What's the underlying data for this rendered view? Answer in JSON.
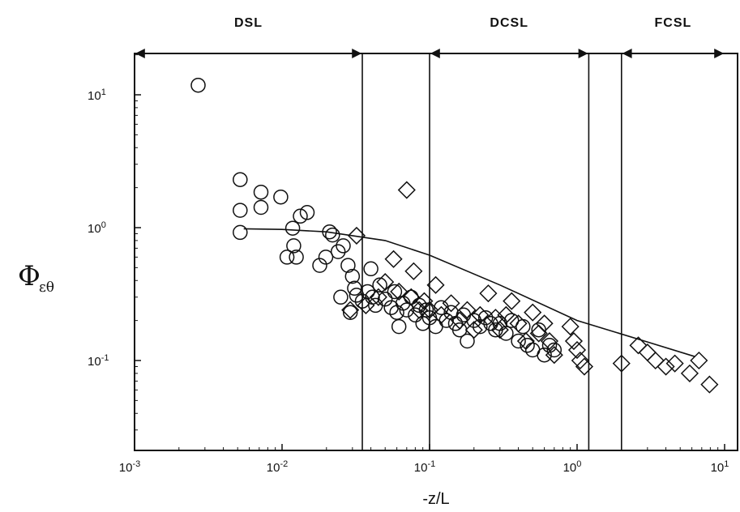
{
  "chart_data": {
    "type": "scatter",
    "title": "",
    "xlabel": "-z/L",
    "ylabel": {
      "main": "Φ",
      "sub": "εθ"
    },
    "x_scale": "log",
    "y_scale": "log",
    "xlim": [
      0.001,
      10
    ],
    "ylim": [
      0.025,
      20
    ],
    "grid": false,
    "x_ticks": [
      {
        "value": 0.001,
        "base": "10",
        "exp": "-3"
      },
      {
        "value": 0.01,
        "base": "10",
        "exp": "-2"
      },
      {
        "value": 0.1,
        "base": "10",
        "exp": "-1"
      },
      {
        "value": 1,
        "base": "10",
        "exp": "0"
      },
      {
        "value": 10,
        "base": "10",
        "exp": "1"
      }
    ],
    "y_ticks": [
      {
        "value": 0.1,
        "base": "10",
        "exp": "-1"
      },
      {
        "value": 1,
        "base": "10",
        "exp": "0"
      },
      {
        "value": 10,
        "base": "10",
        "exp": "1"
      }
    ],
    "regions": [
      {
        "label": "DSL",
        "from": 0.001,
        "to": 0.035
      },
      {
        "label": "DCSL",
        "from": 0.1,
        "to": 1.2
      },
      {
        "label": "FCSL",
        "from": 2.0,
        "to": 10
      }
    ],
    "vertical_lines": [
      0.035,
      0.1,
      1.2,
      2.0
    ],
    "series": [
      {
        "marker": "circle",
        "points": [
          [
            0.0027,
            11.8
          ],
          [
            0.0052,
            2.3
          ],
          [
            0.0052,
            1.35
          ],
          [
            0.0052,
            0.92
          ],
          [
            0.0072,
            1.85
          ],
          [
            0.0072,
            1.42
          ],
          [
            0.0098,
            1.7
          ],
          [
            0.0108,
            0.6
          ],
          [
            0.0118,
            0.99
          ],
          [
            0.012,
            0.73
          ],
          [
            0.0125,
            0.6
          ],
          [
            0.0133,
            1.22
          ],
          [
            0.0148,
            1.3
          ],
          [
            0.018,
            0.52
          ],
          [
            0.0198,
            0.6
          ],
          [
            0.021,
            0.93
          ],
          [
            0.022,
            0.88
          ],
          [
            0.024,
            0.66
          ],
          [
            0.025,
            0.3
          ],
          [
            0.026,
            0.73
          ],
          [
            0.028,
            0.52
          ],
          [
            0.029,
            0.23
          ],
          [
            0.03,
            0.43
          ],
          [
            0.031,
            0.35
          ],
          [
            0.032,
            0.31
          ],
          [
            0.035,
            0.28
          ],
          [
            0.038,
            0.33
          ],
          [
            0.04,
            0.49
          ],
          [
            0.041,
            0.3
          ],
          [
            0.043,
            0.26
          ],
          [
            0.046,
            0.37
          ],
          [
            0.05,
            0.29
          ],
          [
            0.055,
            0.25
          ],
          [
            0.058,
            0.33
          ],
          [
            0.06,
            0.23
          ],
          [
            0.062,
            0.18
          ],
          [
            0.066,
            0.27
          ],
          [
            0.07,
            0.24
          ],
          [
            0.075,
            0.3
          ],
          [
            0.08,
            0.22
          ],
          [
            0.085,
            0.26
          ],
          [
            0.09,
            0.19
          ],
          [
            0.095,
            0.24
          ],
          [
            0.1,
            0.21
          ],
          [
            0.11,
            0.18
          ],
          [
            0.12,
            0.25
          ],
          [
            0.13,
            0.2
          ],
          [
            0.14,
            0.23
          ],
          [
            0.15,
            0.19
          ],
          [
            0.16,
            0.17
          ],
          [
            0.17,
            0.22
          ],
          [
            0.18,
            0.14
          ],
          [
            0.2,
            0.2
          ],
          [
            0.22,
            0.18
          ],
          [
            0.24,
            0.21
          ],
          [
            0.26,
            0.19
          ],
          [
            0.28,
            0.17
          ],
          [
            0.3,
            0.19
          ],
          [
            0.33,
            0.16
          ],
          [
            0.36,
            0.2
          ],
          [
            0.4,
            0.14
          ],
          [
            0.43,
            0.18
          ],
          [
            0.46,
            0.13
          ],
          [
            0.5,
            0.12
          ],
          [
            0.55,
            0.17
          ],
          [
            0.6,
            0.11
          ],
          [
            0.65,
            0.13
          ],
          [
            0.7,
            0.12
          ]
        ]
      },
      {
        "marker": "diamond",
        "points": [
          [
            0.029,
            0.24
          ],
          [
            0.032,
            0.87
          ],
          [
            0.037,
            0.26
          ],
          [
            0.045,
            0.3
          ],
          [
            0.05,
            0.39
          ],
          [
            0.057,
            0.58
          ],
          [
            0.062,
            0.33
          ],
          [
            0.07,
            1.92
          ],
          [
            0.075,
            0.3
          ],
          [
            0.078,
            0.47
          ],
          [
            0.085,
            0.24
          ],
          [
            0.092,
            0.28
          ],
          [
            0.1,
            0.24
          ],
          [
            0.11,
            0.37
          ],
          [
            0.12,
            0.22
          ],
          [
            0.14,
            0.27
          ],
          [
            0.16,
            0.2
          ],
          [
            0.18,
            0.24
          ],
          [
            0.2,
            0.17
          ],
          [
            0.22,
            0.22
          ],
          [
            0.25,
            0.32
          ],
          [
            0.28,
            0.21
          ],
          [
            0.3,
            0.17
          ],
          [
            0.33,
            0.22
          ],
          [
            0.36,
            0.28
          ],
          [
            0.4,
            0.19
          ],
          [
            0.45,
            0.14
          ],
          [
            0.5,
            0.23
          ],
          [
            0.55,
            0.16
          ],
          [
            0.6,
            0.19
          ],
          [
            0.65,
            0.14
          ],
          [
            0.7,
            0.11
          ],
          [
            0.9,
            0.18
          ],
          [
            0.95,
            0.14
          ],
          [
            1.0,
            0.12
          ],
          [
            1.05,
            0.1
          ],
          [
            1.12,
            0.09
          ],
          [
            2.0,
            0.095
          ],
          [
            2.6,
            0.13
          ],
          [
            3.0,
            0.115
          ],
          [
            3.4,
            0.1
          ],
          [
            4.0,
            0.09
          ],
          [
            4.6,
            0.095
          ],
          [
            5.8,
            0.08
          ],
          [
            6.7,
            0.1
          ],
          [
            7.9,
            0.066
          ]
        ]
      }
    ],
    "curve": {
      "type": "line",
      "points": [
        [
          0.0055,
          0.98
        ],
        [
          0.01,
          0.97
        ],
        [
          0.02,
          0.93
        ],
        [
          0.05,
          0.8
        ],
        [
          0.1,
          0.62
        ],
        [
          0.3,
          0.37
        ],
        [
          1.0,
          0.2
        ],
        [
          3.0,
          0.138
        ],
        [
          6.3,
          0.107
        ]
      ]
    }
  }
}
